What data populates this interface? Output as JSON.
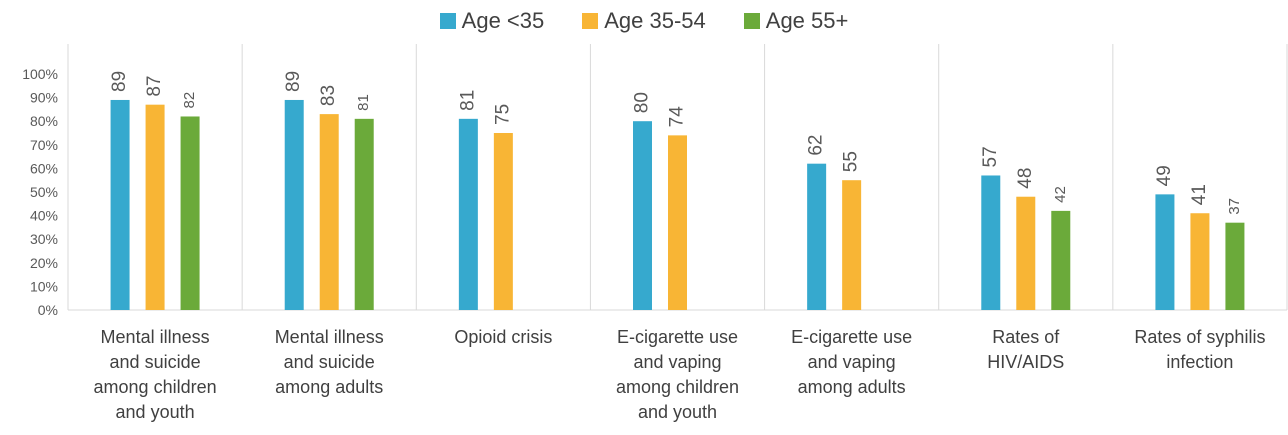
{
  "chart_data": {
    "type": "bar",
    "categories": [
      [
        "Mental illness",
        "and suicide",
        "among children",
        "and youth"
      ],
      [
        "Mental illness",
        "and suicide",
        "among adults"
      ],
      [
        "Opioid crisis"
      ],
      [
        "E-cigarette use",
        "and vaping",
        "among children",
        "and youth"
      ],
      [
        "E-cigarette use",
        "and vaping",
        "among adults"
      ],
      [
        "Rates of",
        "HIV/AIDS"
      ],
      [
        "Rates of syphilis",
        "infection"
      ]
    ],
    "series": [
      {
        "name": "Age <35",
        "color": "#36A9CE",
        "values": [
          89,
          89,
          81,
          80,
          62,
          57,
          49
        ]
      },
      {
        "name": "Age 35-54",
        "color": "#F8B535",
        "values": [
          87,
          83,
          75,
          74,
          55,
          48,
          41
        ]
      },
      {
        "name": "Age 55+",
        "color": "#6BAA3A",
        "values": [
          82,
          81,
          null,
          null,
          null,
          42,
          37
        ]
      }
    ],
    "yticks": [
      "0%",
      "10%",
      "20%",
      "30%",
      "40%",
      "50%",
      "60%",
      "70%",
      "80%",
      "90%",
      "100%"
    ],
    "ylim": [
      0,
      100
    ],
    "legend": "top-center",
    "grid": false
  }
}
